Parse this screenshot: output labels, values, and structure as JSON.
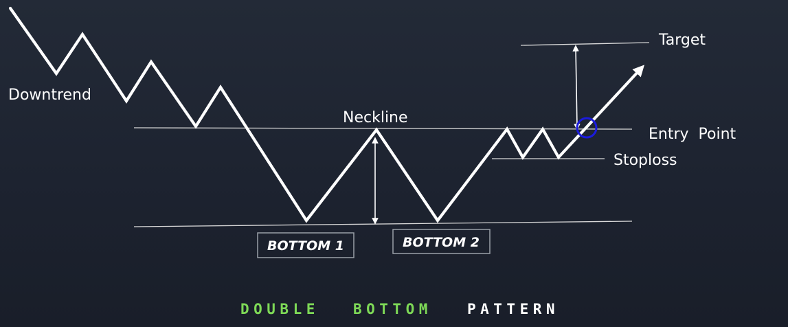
{
  "labels": {
    "downtrend": "Downtrend",
    "neckline": "Neckline",
    "target": "Target",
    "entry_point": "Entry  Point",
    "stoploss": "Stoploss",
    "bottom_1": "BOTTOM 1",
    "bottom_2": "BOTTOM 2"
  },
  "caption": {
    "word_1": "DOUBLE",
    "word_2": "BOTTOM",
    "word_3": "PATTERN"
  },
  "colors": {
    "background": "#1f2532",
    "line": "#ffffff",
    "entry_marker": "#1b1bdd",
    "caption_accent": "#7ed957",
    "caption_plain": "#ffffff"
  }
}
